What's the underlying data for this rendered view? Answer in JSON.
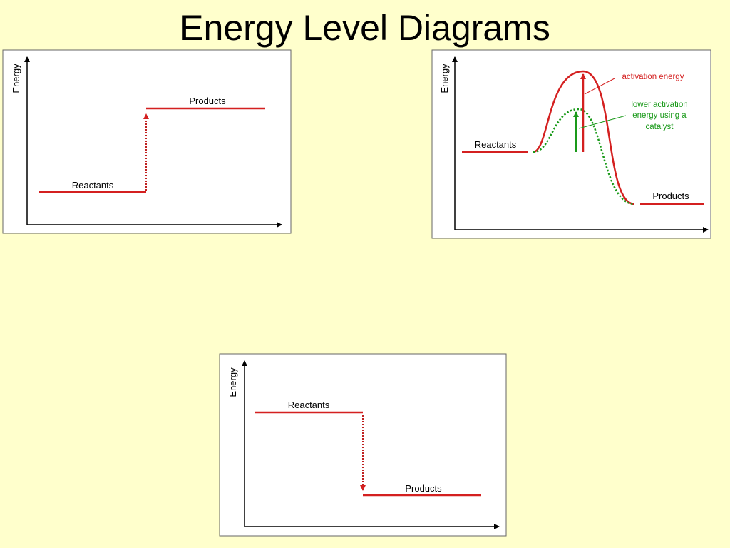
{
  "title": "Energy Level Diagrams",
  "diagrams": [
    {
      "axis_label": "Energy",
      "reactants": "Reactants",
      "products": "Products"
    },
    {
      "axis_label": "Energy",
      "reactants": "Reactants",
      "products": "Products",
      "activation_label": "activation energy",
      "catalyst_label": [
        "lower activation",
        "energy using a",
        "catalyst"
      ]
    },
    {
      "axis_label": "Energy",
      "reactants": "Reactants",
      "products": "Products"
    }
  ]
}
